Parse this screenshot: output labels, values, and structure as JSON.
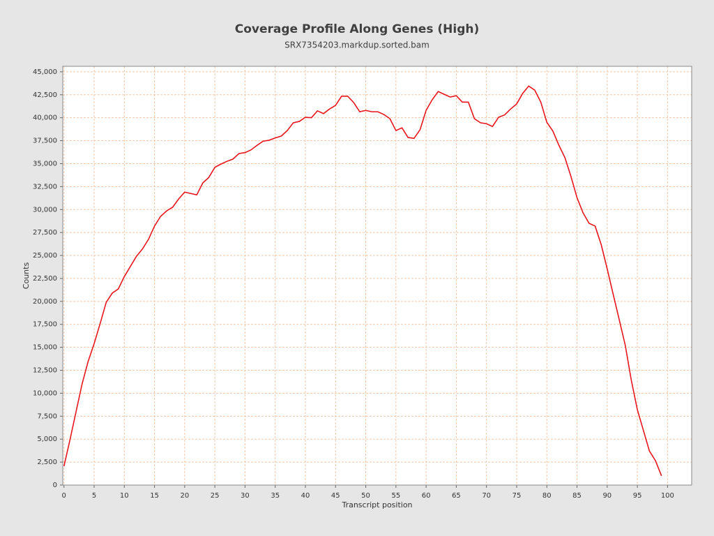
{
  "chart_data": {
    "type": "line",
    "title": "Coverage Profile Along Genes (High)",
    "subtitle": "SRX7354203.markdup.sorted.bam",
    "x_label": "Transcript position",
    "y_label": "Counts",
    "x": [
      0,
      1,
      2,
      3,
      4,
      5,
      6,
      7,
      8,
      9,
      10,
      11,
      12,
      13,
      14,
      15,
      16,
      17,
      18,
      19,
      20,
      21,
      22,
      23,
      24,
      25,
      26,
      27,
      28,
      29,
      30,
      31,
      32,
      33,
      34,
      35,
      36,
      37,
      38,
      39,
      40,
      41,
      42,
      43,
      44,
      45,
      46,
      47,
      48,
      49,
      50,
      51,
      52,
      53,
      54,
      55,
      56,
      57,
      58,
      59,
      60,
      61,
      62,
      63,
      64,
      65,
      66,
      67,
      68,
      69,
      70,
      71,
      72,
      73,
      74,
      75,
      76,
      77,
      78,
      79,
      80,
      81,
      82,
      83,
      84,
      85,
      86,
      87,
      88,
      89,
      90,
      91,
      92,
      93,
      94,
      95,
      96,
      97,
      98,
      99
    ],
    "values": [
      2050,
      4940,
      7980,
      11000,
      13450,
      15400,
      17600,
      19900,
      20900,
      21350,
      22700,
      23800,
      24900,
      25700,
      26750,
      28200,
      29250,
      29850,
      30250,
      31150,
      31900,
      31750,
      31600,
      32900,
      33500,
      34600,
      34950,
      35250,
      35500,
      36100,
      36200,
      36500,
      37000,
      37450,
      37550,
      37800,
      38000,
      38600,
      39450,
      39600,
      40050,
      40000,
      40750,
      40450,
      40950,
      41350,
      42350,
      42350,
      41650,
      40650,
      40800,
      40650,
      40650,
      40350,
      39900,
      38600,
      38900,
      37850,
      37750,
      38700,
      40800,
      41950,
      42850,
      42550,
      42250,
      42400,
      41700,
      41700,
      39900,
      39450,
      39350,
      39050,
      40050,
      40300,
      40950,
      41500,
      42650,
      43450,
      43000,
      41700,
      39500,
      38550,
      37000,
      35650,
      33600,
      31300,
      29650,
      28500,
      28200,
      26200,
      23550,
      20750,
      18000,
      15200,
      11400,
      8200,
      5950,
      3700,
      2650,
      1000
    ],
    "color": "#e8141c",
    "xlim": [
      -0.2,
      104
    ],
    "ylim": [
      0,
      45600
    ],
    "xticks": [
      0,
      5,
      10,
      15,
      20,
      25,
      30,
      35,
      40,
      45,
      50,
      55,
      60,
      65,
      70,
      75,
      80,
      85,
      90,
      95,
      100
    ],
    "yticks": [
      0,
      {
        "value": 2500,
        "label": "2,500"
      },
      {
        "value": 5000,
        "label": "5,000"
      },
      {
        "value": 7500,
        "label": "7,500"
      },
      {
        "value": 10000,
        "label": "10,000"
      },
      {
        "value": 12500,
        "label": "12,500"
      },
      {
        "value": 15000,
        "label": "15,000"
      },
      {
        "value": 17500,
        "label": "17,500"
      },
      {
        "value": 20000,
        "label": "20,000"
      },
      {
        "value": 22500,
        "label": "22,500"
      },
      {
        "value": 25000,
        "label": "25,000"
      },
      {
        "value": 27500,
        "label": "27,500"
      },
      {
        "value": 30000,
        "label": "30,000"
      },
      {
        "value": 32500,
        "label": "32,500"
      },
      {
        "value": 35000,
        "label": "35,000"
      },
      {
        "value": 37500,
        "label": "37,500"
      },
      {
        "value": 40000,
        "label": "40,000"
      },
      {
        "value": 42500,
        "label": "42,500"
      },
      {
        "value": 45000,
        "label": "45,000"
      }
    ],
    "grid": true,
    "grid_color": "#f2c8a8"
  }
}
